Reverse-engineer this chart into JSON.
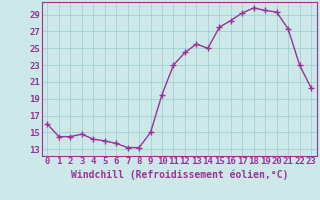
{
  "x": [
    0,
    1,
    2,
    3,
    4,
    5,
    6,
    7,
    8,
    9,
    10,
    11,
    12,
    13,
    14,
    15,
    16,
    17,
    18,
    19,
    20,
    21,
    22,
    23
  ],
  "y": [
    16.0,
    14.5,
    14.5,
    14.8,
    14.2,
    14.0,
    13.7,
    13.2,
    13.2,
    15.0,
    19.5,
    23.0,
    24.5,
    25.5,
    25.0,
    27.5,
    28.3,
    29.2,
    29.8,
    29.5,
    29.3,
    27.3,
    23.0,
    20.3
  ],
  "line_color": "#993399",
  "marker": "+",
  "marker_size": 4,
  "marker_linewidth": 1.0,
  "line_width": 1.0,
  "bg_color": "#cce8e8",
  "grid_color": "#99cccc",
  "xlabel": "Windchill (Refroidissement éolien,°C)",
  "xlabel_fontsize": 7,
  "ytick_values": [
    13,
    15,
    17,
    19,
    21,
    23,
    25,
    27,
    29
  ],
  "xtick_values": [
    0,
    1,
    2,
    3,
    4,
    5,
    6,
    7,
    8,
    9,
    10,
    11,
    12,
    13,
    14,
    15,
    16,
    17,
    18,
    19,
    20,
    21,
    22,
    23
  ],
  "xlim": [
    -0.5,
    23.5
  ],
  "ylim": [
    12.2,
    30.5
  ],
  "tick_fontsize": 6.5,
  "tick_color": "#993399",
  "label_color": "#993399",
  "spine_color": "#993399"
}
